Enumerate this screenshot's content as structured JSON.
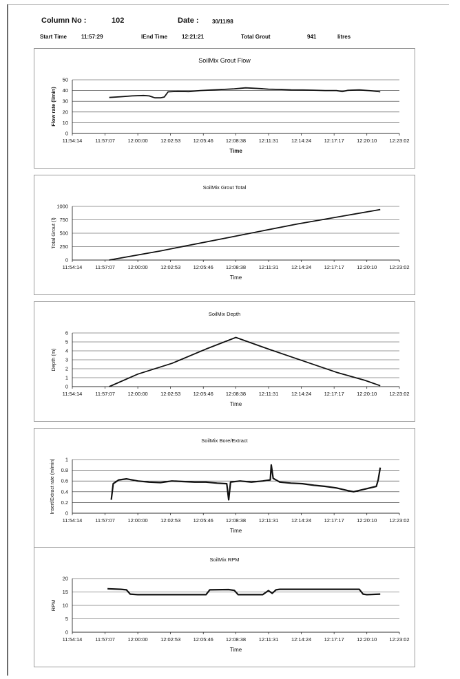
{
  "header": {
    "column_label": "Column No :",
    "column_value": "102",
    "date_label": "Date :",
    "date_value": "30/11/98",
    "start_label": "Start Time",
    "start_value": "11:57:29",
    "end_label": "lEnd Time",
    "end_value": "12:21:21",
    "grout_label": "Total Grout",
    "grout_value": "941",
    "grout_unit": "litres"
  },
  "chart_data": [
    {
      "id": "flow",
      "type": "line",
      "title": "SoilMix Grout Flow",
      "xlabel": "Time",
      "ylabel": "Flow rate (l/min)",
      "x_ticks": [
        "11:54:14",
        "11:57:07",
        "12:00:00",
        "12:02:53",
        "12:05:46",
        "12:08:38",
        "12:11:31",
        "12:14:24",
        "12:17:17",
        "12:20:10",
        "12:23:02"
      ],
      "y_ticks": [
        "0",
        "10",
        "20",
        "30",
        "40",
        "50"
      ],
      "ylim": [
        0,
        50
      ],
      "grid": true,
      "series": [
        {
          "x": [
            "11:57:29",
            "11:58:30",
            "11:59:30",
            "12:00:30",
            "12:01:00",
            "12:01:30",
            "12:02:00",
            "12:02:20",
            "12:02:40",
            "12:03:30",
            "12:04:30",
            "12:05:30",
            "12:06:30",
            "12:07:30",
            "12:08:30",
            "12:09:30",
            "12:10:30",
            "12:11:30",
            "12:12:30",
            "12:13:30",
            "12:14:30",
            "12:15:30",
            "12:16:30",
            "12:17:30",
            "12:18:00",
            "12:18:30",
            "12:19:30",
            "12:20:30",
            "12:21:21"
          ],
          "y": [
            33.5,
            34.2,
            35.0,
            35.4,
            35.0,
            33.2,
            33.2,
            34.0,
            38.8,
            39.2,
            39.0,
            40.0,
            40.5,
            41.0,
            41.6,
            42.5,
            42.0,
            41.3,
            41.0,
            40.6,
            40.5,
            40.3,
            40.0,
            40.0,
            39.0,
            40.2,
            40.6,
            39.8,
            38.8
          ]
        }
      ]
    },
    {
      "id": "total",
      "type": "line",
      "title": "SoilMix Grout Total",
      "xlabel": "Time",
      "ylabel": "Total Grout (l)",
      "x_ticks": [
        "11:54:14",
        "11:57:07",
        "12:00:00",
        "12:02:53",
        "12:05:46",
        "12:08:38",
        "12:11:31",
        "12:14:24",
        "12:17:17",
        "12:20:10",
        "12:23:02"
      ],
      "y_ticks": [
        "0",
        "250",
        "500",
        "750",
        "1000"
      ],
      "ylim": [
        0,
        1000
      ],
      "grid": true,
      "series": [
        {
          "x": [
            "11:57:29",
            "12:02:00",
            "12:08:00",
            "12:14:00",
            "12:21:21"
          ],
          "y": [
            0,
            170,
            420,
            670,
            941
          ]
        }
      ]
    },
    {
      "id": "depth",
      "type": "line",
      "title": "SoilMix Depth",
      "xlabel": "Time",
      "ylabel": "Depth (m)",
      "x_ticks": [
        "11:54:14",
        "11:57:07",
        "12:00:00",
        "12:02:53",
        "12:05:46",
        "12:08:38",
        "12:11:31",
        "12:14:24",
        "12:17:17",
        "12:20:10",
        "12:23:02"
      ],
      "y_ticks": [
        "0",
        "1",
        "2",
        "3",
        "4",
        "5",
        "6"
      ],
      "ylim": [
        0,
        6
      ],
      "grid": true,
      "series": [
        {
          "x": [
            "11:57:29",
            "12:00:00",
            "12:03:00",
            "12:06:00",
            "12:08:38",
            "12:11:30",
            "12:14:30",
            "12:17:30",
            "12:20:00",
            "12:21:21"
          ],
          "y": [
            0,
            1.4,
            2.6,
            4.2,
            5.5,
            4.2,
            2.9,
            1.6,
            0.7,
            0.1
          ]
        }
      ]
    },
    {
      "id": "bore",
      "type": "line",
      "title": "SoilMix Bore/Extract",
      "xlabel": "Time",
      "ylabel": "Insert/Extract rate (m/min)",
      "x_ticks": [
        "11:54:14",
        "11:57:07",
        "12:00:00",
        "12:02:53",
        "12:05:46",
        "12:08:38",
        "12:11:31",
        "12:14:24",
        "12:17:17",
        "12:20:10",
        "12:23:02"
      ],
      "y_ticks": [
        "0",
        "0.2",
        "0.4",
        "0.6",
        "0.8",
        "1"
      ],
      "ylim": [
        0,
        1
      ],
      "grid": true,
      "series": [
        {
          "x": [
            "11:57:40",
            "11:57:50",
            "11:58:20",
            "11:59:00",
            "12:00:00",
            "12:01:00",
            "12:02:00",
            "12:03:00",
            "12:04:00",
            "12:05:00",
            "12:06:00",
            "12:07:00",
            "12:07:50",
            "12:08:00",
            "12:08:10",
            "12:09:00",
            "12:10:00",
            "12:11:00",
            "12:11:40",
            "12:11:45",
            "12:11:55",
            "12:12:30",
            "12:13:30",
            "12:14:30",
            "12:15:30",
            "12:16:30",
            "12:17:30",
            "12:18:30",
            "12:19:00",
            "12:20:00",
            "12:21:00",
            "12:21:10",
            "12:21:21"
          ],
          "y": [
            0.25,
            0.55,
            0.62,
            0.64,
            0.6,
            0.58,
            0.57,
            0.6,
            0.59,
            0.58,
            0.58,
            0.56,
            0.55,
            0.25,
            0.58,
            0.6,
            0.58,
            0.6,
            0.62,
            0.9,
            0.65,
            0.58,
            0.56,
            0.55,
            0.52,
            0.5,
            0.47,
            0.42,
            0.4,
            0.45,
            0.5,
            0.62,
            0.85
          ]
        }
      ]
    },
    {
      "id": "rpm",
      "type": "line",
      "title": "SoilMix RPM",
      "xlabel": "Time",
      "ylabel": "RPM",
      "x_ticks": [
        "11:54:14",
        "11:57:07",
        "12:00:00",
        "12:02:53",
        "12:05:46",
        "12:08:38",
        "12:11:31",
        "12:14:24",
        "12:17:17",
        "12:20:10",
        "12:23:02"
      ],
      "y_ticks": [
        "0",
        "5",
        "10",
        "15",
        "20"
      ],
      "ylim": [
        0,
        20
      ],
      "grid": true,
      "series": [
        {
          "x": [
            "11:57:20",
            "11:58:30",
            "11:59:00",
            "11:59:20",
            "12:00:00",
            "12:02:00",
            "12:04:00",
            "12:06:00",
            "12:06:20",
            "12:08:00",
            "12:08:30",
            "12:08:50",
            "12:10:00",
            "12:11:00",
            "12:11:30",
            "12:11:50",
            "12:12:10",
            "12:12:30",
            "12:14:00",
            "12:16:00",
            "12:18:00",
            "12:19:30",
            "12:19:50",
            "12:20:10",
            "12:21:21"
          ],
          "y": [
            16.2,
            16.0,
            15.8,
            14.2,
            14.0,
            14.0,
            14.0,
            14.0,
            15.8,
            15.9,
            15.6,
            14.0,
            14.0,
            14.0,
            15.5,
            14.5,
            15.8,
            16.0,
            16.0,
            16.0,
            16.0,
            16.0,
            14.2,
            14.0,
            14.2
          ]
        }
      ]
    }
  ]
}
